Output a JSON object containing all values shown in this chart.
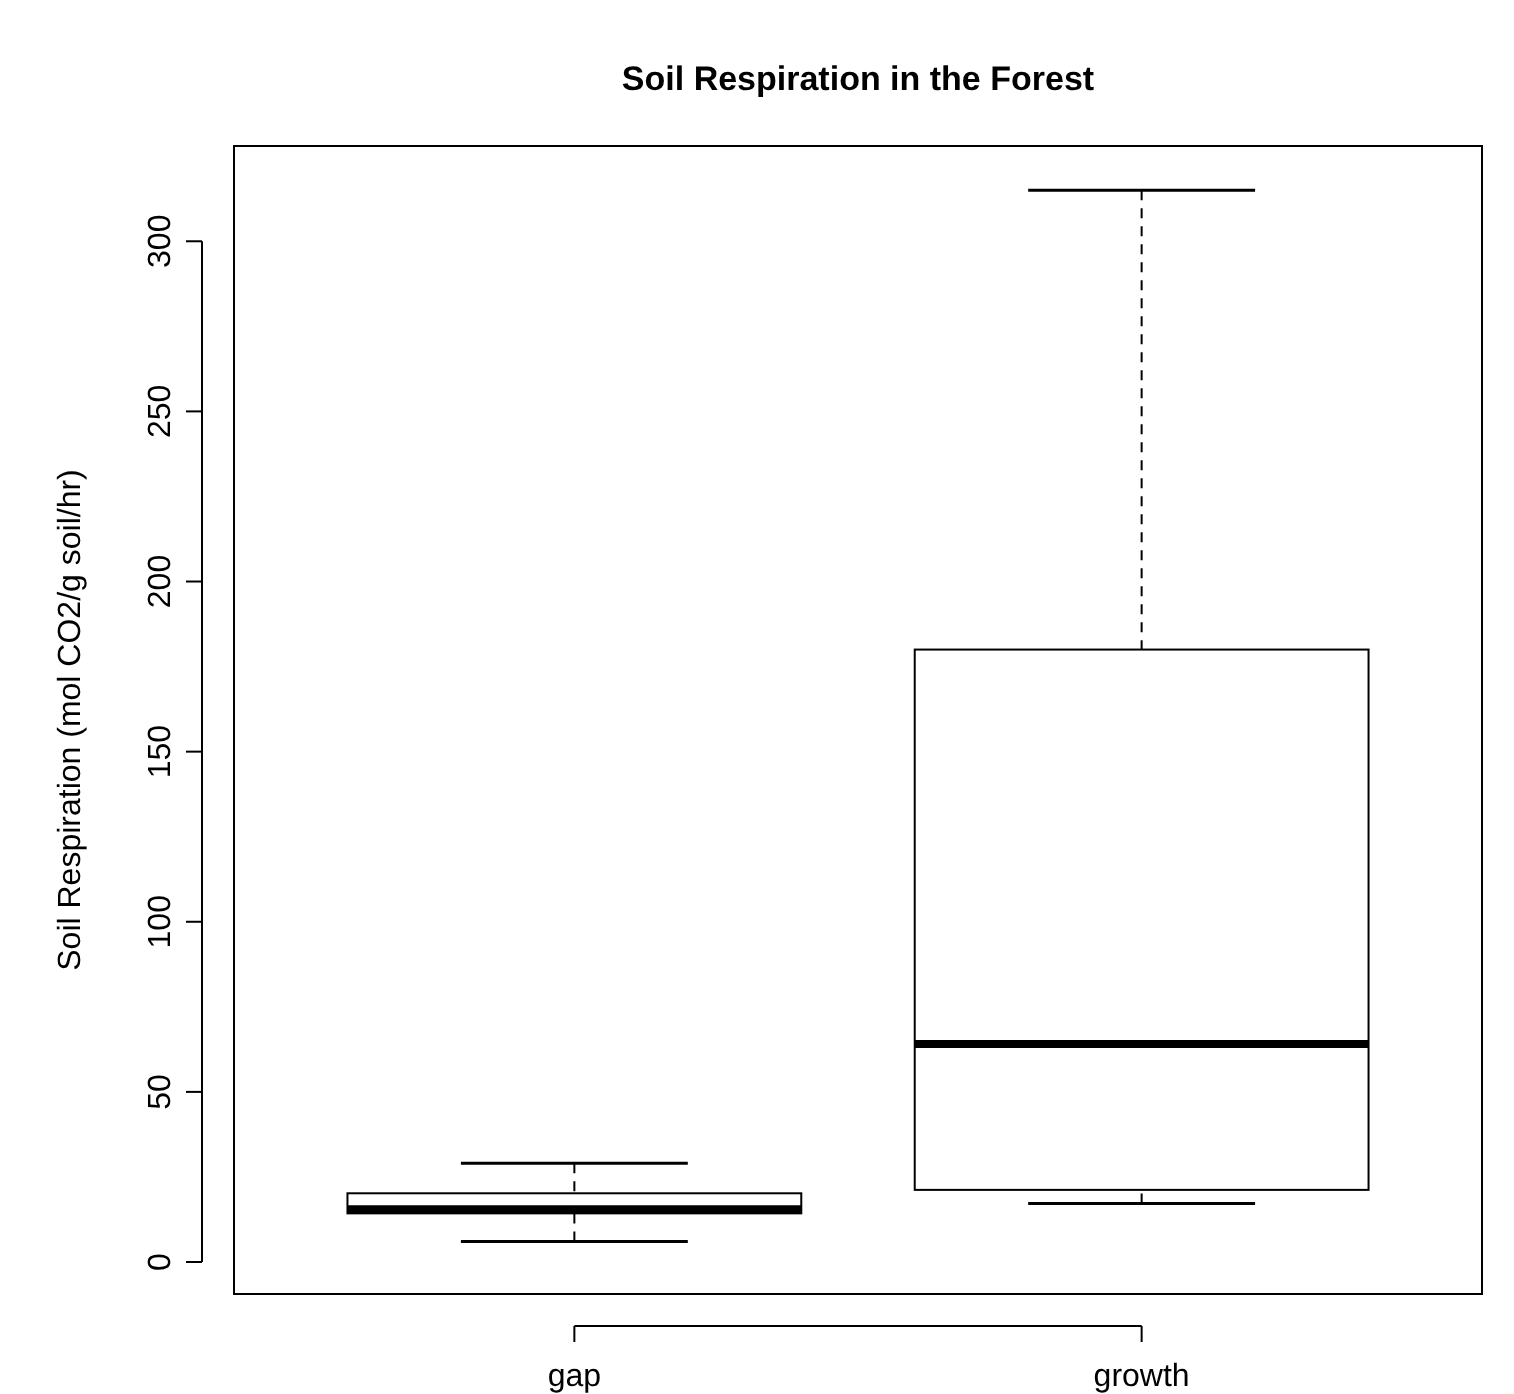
{
  "chart_data": {
    "type": "box",
    "title": "Soil Respiration in the Forest",
    "ylabel": "Soil Respiration (mol CO2/g soil/hr)",
    "categories": [
      "gap",
      "growth"
    ],
    "boxes": [
      {
        "low": 6,
        "q1": 14.3,
        "median": 15.5,
        "q3": 20.2,
        "high": 29
      },
      {
        "low": 17.2,
        "q1": 21.2,
        "median": 64.1,
        "q3": 180,
        "high": 315
      }
    ],
    "ylim": [
      -9.4,
      328
    ],
    "yticks": [
      0,
      50,
      100,
      150,
      200,
      250,
      300
    ],
    "grid": false,
    "line_style": "dashed"
  }
}
